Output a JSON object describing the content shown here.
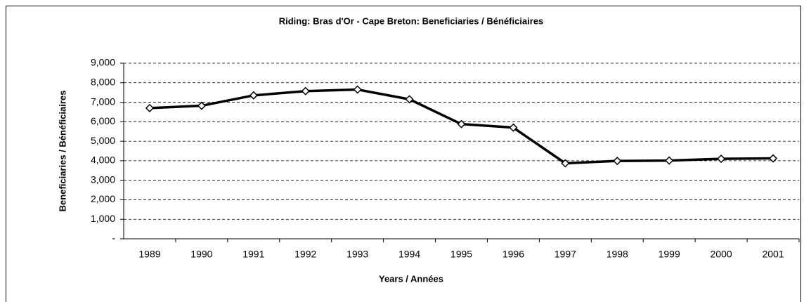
{
  "chart_data": {
    "type": "line",
    "title": "Riding:  Bras d'Or - Cape Breton:  Beneficiaries / Bénéficiaires",
    "x_label": "Years / Années",
    "y_label": "Beneficiaries / Bénéficiaires",
    "categories": [
      "1989",
      "1990",
      "1991",
      "1992",
      "1993",
      "1994",
      "1995",
      "1996",
      "1997",
      "1998",
      "1999",
      "2000",
      "2001"
    ],
    "series": [
      {
        "name": "Beneficiaries / Bénéficiaires",
        "color": "#000000",
        "values": [
          6700,
          6820,
          7350,
          7570,
          7650,
          7150,
          5880,
          5700,
          3870,
          3990,
          4010,
          4100,
          4120
        ]
      }
    ],
    "ylim": [
      0,
      9000
    ],
    "yticks": [
      {
        "value": 0,
        "label": "-"
      },
      {
        "value": 1000,
        "label": "1,000"
      },
      {
        "value": 2000,
        "label": "2,000"
      },
      {
        "value": 3000,
        "label": "3,000"
      },
      {
        "value": 4000,
        "label": "4,000"
      },
      {
        "value": 5000,
        "label": "5,000"
      },
      {
        "value": 6000,
        "label": "6,000"
      },
      {
        "value": 7000,
        "label": "7,000"
      },
      {
        "value": 8000,
        "label": "8,000"
      },
      {
        "value": 9000,
        "label": "9,000"
      }
    ],
    "grid": true
  }
}
